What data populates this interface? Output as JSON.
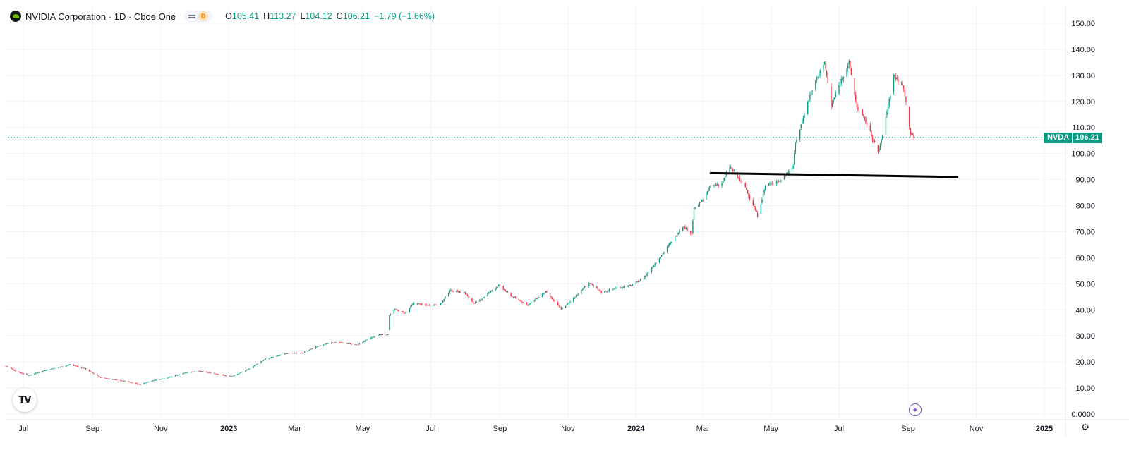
{
  "legend": {
    "title": "NVIDIA Corporation · 1D · Cboe One",
    "badge_letter": "D",
    "open_key": "O",
    "open": "105.41",
    "high_key": "H",
    "high": "113.27",
    "low_key": "L",
    "low": "104.12",
    "close_key": "C",
    "close": "106.21",
    "change": "−1.79 (−1.66%)"
  },
  "price_badge": {
    "symbol": "NVDA",
    "value": "106.21"
  },
  "icons": {
    "tv_logo": "tradingview-logo-icon",
    "magic": "sparkle-icon",
    "settings": "settings-icon"
  },
  "colors": {
    "up": "#089981",
    "down": "#f23645",
    "trendline": "#000000",
    "grid": "#f0f3fa",
    "axis_text": "#131722"
  },
  "tv_logo_text": "TV",
  "chart_data": {
    "type": "candlestick",
    "ylim": [
      0,
      150
    ],
    "xlim": [
      "2022-06-15",
      "2025-01-20"
    ],
    "y_ticks": [
      "150.00",
      "140.00",
      "130.00",
      "120.00",
      "110.00",
      "100.00",
      "90.00",
      "80.00",
      "70.00",
      "60.00",
      "50.00",
      "40.00",
      "30.00",
      "20.00",
      "10.00",
      "0.0000"
    ],
    "x_ticks": [
      {
        "label": "Jul",
        "date": "2022-07-01"
      },
      {
        "label": "Sep",
        "date": "2022-09-01"
      },
      {
        "label": "Nov",
        "date": "2022-11-01"
      },
      {
        "label": "2023",
        "date": "2023-01-01"
      },
      {
        "label": "Mar",
        "date": "2023-03-01"
      },
      {
        "label": "May",
        "date": "2023-05-01"
      },
      {
        "label": "Jul",
        "date": "2023-07-01"
      },
      {
        "label": "Sep",
        "date": "2023-09-01"
      },
      {
        "label": "Nov",
        "date": "2023-11-01"
      },
      {
        "label": "2024",
        "date": "2024-01-01"
      },
      {
        "label": "Mar",
        "date": "2024-03-01"
      },
      {
        "label": "May",
        "date": "2024-05-01"
      },
      {
        "label": "Jul",
        "date": "2024-07-01"
      },
      {
        "label": "Sep",
        "date": "2024-09-01"
      },
      {
        "label": "Nov",
        "date": "2024-11-01"
      },
      {
        "label": "2025",
        "date": "2025-01-01"
      }
    ],
    "close_path": [
      [
        "2022-06-15",
        18.5
      ],
      [
        "2022-06-24",
        16.5
      ],
      [
        "2022-07-06",
        14.8
      ],
      [
        "2022-07-20",
        16.8
      ],
      [
        "2022-08-12",
        19.0
      ],
      [
        "2022-08-25",
        17.5
      ],
      [
        "2022-09-08",
        14.0
      ],
      [
        "2022-10-03",
        12.4
      ],
      [
        "2022-10-13",
        11.4
      ],
      [
        "2022-10-24",
        12.8
      ],
      [
        "2022-11-08",
        14.0
      ],
      [
        "2022-11-24",
        16.0
      ],
      [
        "2022-12-06",
        16.5
      ],
      [
        "2022-12-20",
        15.5
      ],
      [
        "2023-01-03",
        14.3
      ],
      [
        "2023-01-20",
        17.5
      ],
      [
        "2023-02-02",
        21.0
      ],
      [
        "2023-02-24",
        23.5
      ],
      [
        "2023-03-08",
        23.4
      ],
      [
        "2023-03-20",
        25.8
      ],
      [
        "2023-04-03",
        27.5
      ],
      [
        "2023-04-17",
        27.2
      ],
      [
        "2023-04-26",
        26.5
      ],
      [
        "2023-05-05",
        28.6
      ],
      [
        "2023-05-16",
        30.5
      ],
      [
        "2023-05-24",
        30.5
      ],
      [
        "2023-05-25",
        38.0
      ],
      [
        "2023-05-30",
        40.1
      ],
      [
        "2023-06-08",
        38.7
      ],
      [
        "2023-06-16",
        42.6
      ],
      [
        "2023-06-27",
        41.8
      ],
      [
        "2023-07-10",
        42.2
      ],
      [
        "2023-07-18",
        47.4
      ],
      [
        "2023-07-31",
        46.7
      ],
      [
        "2023-08-09",
        42.3
      ],
      [
        "2023-08-15",
        44.0
      ],
      [
        "2023-08-24",
        47.2
      ],
      [
        "2023-08-31",
        49.3
      ],
      [
        "2023-09-12",
        45.1
      ],
      [
        "2023-09-26",
        41.9
      ],
      [
        "2023-10-12",
        46.9
      ],
      [
        "2023-10-26",
        40.3
      ],
      [
        "2023-11-01",
        42.3
      ],
      [
        "2023-11-20",
        50.4
      ],
      [
        "2023-12-01",
        46.7
      ],
      [
        "2023-12-14",
        48.3
      ],
      [
        "2023-12-29",
        49.5
      ],
      [
        "2024-01-08",
        52.2
      ],
      [
        "2024-01-25",
        61.6
      ],
      [
        "2024-02-12",
        72.2
      ],
      [
        "2024-02-20",
        69.4
      ],
      [
        "2024-02-22",
        78.5
      ],
      [
        "2024-03-01",
        82.2
      ],
      [
        "2024-03-08",
        87.5
      ],
      [
        "2024-03-18",
        88.5
      ],
      [
        "2024-03-25",
        95.0
      ],
      [
        "2024-04-08",
        87.1
      ],
      [
        "2024-04-19",
        76.2
      ],
      [
        "2024-04-26",
        87.7
      ],
      [
        "2024-05-10",
        89.8
      ],
      [
        "2024-05-21",
        95.4
      ],
      [
        "2024-05-23",
        103.8
      ],
      [
        "2024-06-05",
        122.4
      ],
      [
        "2024-06-18",
        135.6
      ],
      [
        "2024-06-24",
        118.1
      ],
      [
        "2024-07-03",
        128.3
      ],
      [
        "2024-07-10",
        134.9
      ],
      [
        "2024-07-17",
        117.9
      ],
      [
        "2024-07-25",
        112.3
      ],
      [
        "2024-08-05",
        100.5
      ],
      [
        "2024-08-08",
        104.9
      ],
      [
        "2024-08-13",
        116.1
      ],
      [
        "2024-08-19",
        130.0
      ],
      [
        "2024-08-28",
        125.6
      ],
      [
        "2024-09-03",
        108.0
      ],
      [
        "2024-09-06",
        106.21
      ]
    ],
    "annotations": [
      {
        "type": "trendline",
        "start": [
          "2024-03-08",
          92.5
        ],
        "end": [
          "2024-10-15",
          91.0
        ],
        "color": "#000000"
      },
      {
        "type": "price_line",
        "value": 106.21,
        "label": "NVDA",
        "color": "#089981"
      }
    ]
  }
}
